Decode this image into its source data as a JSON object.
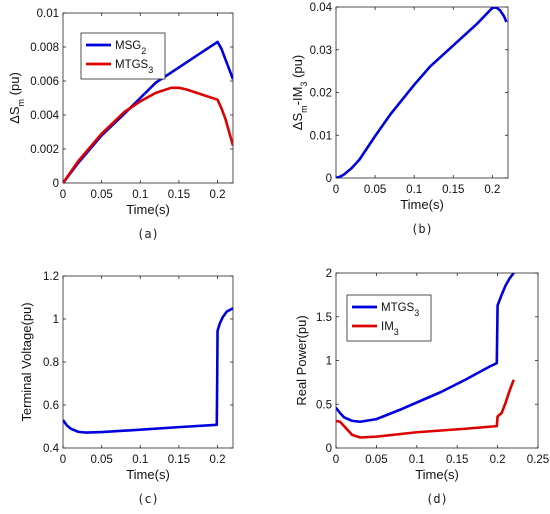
{
  "chart_data": [
    {
      "type": "line",
      "id": "a",
      "caption": "(a)",
      "xlabel": "Time(s)",
      "ylabel_main": "ΔS",
      "ylabel_sub": "m",
      "ylabel_rest": " (pu)",
      "xlim": [
        0,
        0.22
      ],
      "ylim": [
        0,
        0.01
      ],
      "xticks": [
        0,
        0.05,
        0.1,
        0.15,
        0.2
      ],
      "xtick_labels": [
        "0",
        "0.05",
        "0.1",
        "0.15",
        "0.2"
      ],
      "yticks": [
        0,
        0.002,
        0.004,
        0.006,
        0.008,
        0.01
      ],
      "ytick_labels": [
        "0",
        "0.002",
        "0.004",
        "0.006",
        "0.008",
        "0.01"
      ],
      "grid": false,
      "legend_position": "top-left",
      "series": [
        {
          "name": "MSG",
          "name_sub": "2",
          "color": "#0000dd",
          "x": [
            0,
            0.02,
            0.05,
            0.08,
            0.1,
            0.12,
            0.15,
            0.18,
            0.2,
            0.205,
            0.21,
            0.215,
            0.22
          ],
          "y": [
            0,
            0.0012,
            0.0028,
            0.0041,
            0.005,
            0.0059,
            0.0068,
            0.0077,
            0.0083,
            0.0079,
            0.0073,
            0.0067,
            0.0061
          ]
        },
        {
          "name": "MTGS",
          "name_sub": "3",
          "color": "#dd0000",
          "x": [
            0,
            0.02,
            0.05,
            0.08,
            0.1,
            0.12,
            0.14,
            0.15,
            0.16,
            0.18,
            0.2,
            0.205,
            0.21,
            0.215,
            0.22
          ],
          "y": [
            0,
            0.0013,
            0.0029,
            0.0042,
            0.0048,
            0.0053,
            0.0056,
            0.0056,
            0.0055,
            0.0052,
            0.0049,
            0.0044,
            0.0038,
            0.003,
            0.0022
          ]
        }
      ]
    },
    {
      "type": "line",
      "id": "b",
      "caption": "(b)",
      "xlabel": "Time(s)",
      "ylabel_main": "ΔS",
      "ylabel_sub": "m",
      "ylabel_mid": "-IM",
      "ylabel_sub2": "3",
      "ylabel_rest": " (pu)",
      "xlim": [
        0,
        0.22
      ],
      "ylim": [
        0,
        0.04
      ],
      "xticks": [
        0,
        0.05,
        0.1,
        0.15,
        0.2
      ],
      "xtick_labels": [
        "0",
        "0.05",
        "0.1",
        "0.15",
        "0.2"
      ],
      "yticks": [
        0,
        0.01,
        0.02,
        0.03,
        0.04
      ],
      "ytick_labels": [
        "0",
        "0.01",
        "0.02",
        "0.03",
        "0.04"
      ],
      "grid": false,
      "series": [
        {
          "color": "#0000dd",
          "x": [
            0,
            0.005,
            0.01,
            0.02,
            0.03,
            0.05,
            0.07,
            0.1,
            0.12,
            0.15,
            0.18,
            0.2,
            0.205,
            0.21,
            0.215,
            0.218
          ],
          "y": [
            0,
            0.0003,
            0.0008,
            0.0023,
            0.0043,
            0.0098,
            0.015,
            0.0218,
            0.026,
            0.031,
            0.036,
            0.0398,
            0.0399,
            0.0392,
            0.0378,
            0.0365
          ]
        }
      ]
    },
    {
      "type": "line",
      "id": "c",
      "caption": "(c)",
      "xlabel": "Time(s)",
      "ylabel": "Terminal Voltage(pu)",
      "xlim": [
        0,
        0.22
      ],
      "ylim": [
        0.4,
        1.2
      ],
      "xticks": [
        0,
        0.05,
        0.1,
        0.15,
        0.2
      ],
      "xtick_labels": [
        "0",
        "0.05",
        "0.1",
        "0.15",
        "0.2"
      ],
      "yticks": [
        0.4,
        0.6,
        0.8,
        1.0,
        1.2
      ],
      "ytick_labels": [
        "0.4",
        "0.6",
        "0.8",
        "1",
        "1.2"
      ],
      "grid": false,
      "series": [
        {
          "color": "#0000dd",
          "x": [
            0,
            0.005,
            0.01,
            0.02,
            0.03,
            0.05,
            0.1,
            0.15,
            0.199,
            0.1995,
            0.2,
            0.203,
            0.207,
            0.212,
            0.22
          ],
          "y": [
            0.53,
            0.505,
            0.49,
            0.475,
            0.472,
            0.474,
            0.485,
            0.497,
            0.508,
            0.7,
            0.945,
            0.98,
            1.01,
            1.035,
            1.05
          ]
        }
      ]
    },
    {
      "type": "line",
      "id": "d",
      "caption": "(d)",
      "xlabel": "Time(s)",
      "ylabel": "Real Power(pu)",
      "xlim": [
        0,
        0.25
      ],
      "ylim": [
        0,
        2
      ],
      "xticks": [
        0,
        0.05,
        0.1,
        0.15,
        0.2,
        0.25
      ],
      "xtick_labels": [
        "0",
        "0.05",
        "0.1",
        "0.15",
        "0.2",
        "0.25"
      ],
      "yticks": [
        0,
        0.5,
        1,
        1.5,
        2
      ],
      "ytick_labels": [
        "0",
        "0.5",
        "1",
        "1.5",
        "2"
      ],
      "grid": false,
      "legend_position": "top-left",
      "series": [
        {
          "name": "MTGS",
          "name_sub": "3",
          "color": "#0000dd",
          "x": [
            0,
            0.005,
            0.01,
            0.02,
            0.03,
            0.05,
            0.08,
            0.1,
            0.13,
            0.16,
            0.19,
            0.199,
            0.2,
            0.205,
            0.21,
            0.215,
            0.22
          ],
          "y": [
            0.46,
            0.4,
            0.35,
            0.31,
            0.3,
            0.33,
            0.44,
            0.52,
            0.64,
            0.78,
            0.93,
            0.97,
            1.63,
            1.75,
            1.86,
            1.94,
            2.0
          ]
        },
        {
          "name": "IM",
          "name_sub": "3",
          "color": "#dd0000",
          "x": [
            0,
            0.005,
            0.01,
            0.02,
            0.03,
            0.05,
            0.08,
            0.1,
            0.13,
            0.16,
            0.199,
            0.2,
            0.205,
            0.21,
            0.215,
            0.22
          ],
          "y": [
            0.31,
            0.3,
            0.25,
            0.15,
            0.12,
            0.13,
            0.16,
            0.18,
            0.2,
            0.22,
            0.25,
            0.36,
            0.4,
            0.52,
            0.66,
            0.78
          ]
        }
      ]
    }
  ]
}
